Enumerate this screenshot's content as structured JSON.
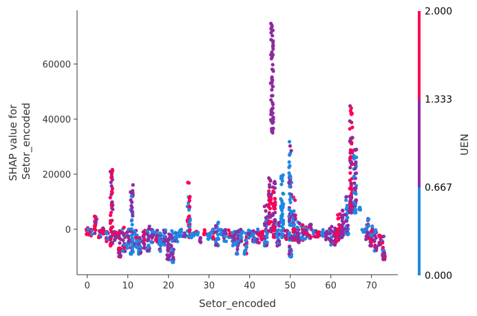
{
  "chart_data": {
    "type": "scatter",
    "title": "",
    "xlabel": "Setor_encoded",
    "ylabel_lines": [
      "SHAP value for",
      "Setor_encoded"
    ],
    "xlim": [
      -2.5,
      76.5
    ],
    "ylim": [
      -16500,
      79500
    ],
    "xticks": [
      0,
      10,
      20,
      30,
      40,
      50,
      60,
      70
    ],
    "yticks": [
      0,
      20000,
      40000,
      60000
    ],
    "x_tick_labels": [
      "0",
      "10",
      "20",
      "30",
      "40",
      "50",
      "60",
      "70"
    ],
    "y_tick_labels": [
      "0",
      "20000",
      "40000",
      "60000"
    ],
    "grid": false,
    "colorbar": {
      "label": "UEN",
      "min": 0.0,
      "max": 2.0,
      "ticks": [
        0.0,
        0.667,
        1.333,
        2.0
      ],
      "tick_labels": [
        "0.000",
        "0.667",
        "1.333",
        "2.000"
      ],
      "colors": [
        "#1e88e5",
        "#8e2ba0",
        "#ff0052"
      ]
    },
    "groups": [
      {
        "x": 0,
        "y_range": [
          -2500,
          500
        ],
        "uen": [
          0,
          2
        ]
      },
      {
        "x": 1,
        "y_range": [
          -3000,
          0
        ],
        "uen": [
          0,
          1,
          2
        ]
      },
      {
        "x": 2,
        "y_range": [
          -1500,
          5000
        ],
        "uen": [
          1,
          2
        ]
      },
      {
        "x": 3,
        "y_range": [
          -3000,
          0
        ],
        "uen": [
          0,
          2
        ]
      },
      {
        "x": 4,
        "y_range": [
          -2000,
          1000
        ],
        "uen": [
          1,
          2
        ]
      },
      {
        "x": 5,
        "y_range": [
          -5000,
          0
        ],
        "uen": [
          0,
          1,
          2
        ]
      },
      {
        "x": 6,
        "y_range": [
          -6000,
          22000
        ],
        "uen": [
          1,
          2
        ]
      },
      {
        "x": 7,
        "y_range": [
          -4000,
          0
        ],
        "uen": [
          1,
          2
        ]
      },
      {
        "x": 8,
        "y_range": [
          -10000,
          0
        ],
        "uen": [
          1,
          2
        ]
      },
      {
        "x": 9,
        "y_range": [
          -8000,
          1000
        ],
        "uen": [
          0,
          1,
          2
        ]
      },
      {
        "x": 10,
        "y_range": [
          -7000,
          0
        ],
        "uen": [
          0,
          1,
          2
        ]
      },
      {
        "x": 11,
        "y_range": [
          -9000,
          16500
        ],
        "uen": [
          0,
          1
        ]
      },
      {
        "x": 12,
        "y_range": [
          -7000,
          0
        ],
        "uen": [
          0,
          1,
          2
        ]
      },
      {
        "x": 13,
        "y_range": [
          -9000,
          -2000
        ],
        "uen": [
          0,
          1
        ]
      },
      {
        "x": 14,
        "y_range": [
          -7000,
          0
        ],
        "uen": [
          1,
          2
        ]
      },
      {
        "x": 15,
        "y_range": [
          -8000,
          1500
        ],
        "uen": [
          0,
          1
        ]
      },
      {
        "x": 16,
        "y_range": [
          -5000,
          0
        ],
        "uen": [
          0,
          1
        ]
      },
      {
        "x": 17,
        "y_range": [
          -5000,
          0
        ],
        "uen": [
          0,
          1,
          2
        ]
      },
      {
        "x": 18,
        "y_range": [
          -8000,
          -1000
        ],
        "uen": [
          0,
          1
        ]
      },
      {
        "x": 19,
        "y_range": [
          -6000,
          0
        ],
        "uen": [
          0,
          1
        ]
      },
      {
        "x": 20,
        "y_range": [
          -11000,
          -1000
        ],
        "uen": [
          1
        ]
      },
      {
        "x": 21,
        "y_range": [
          -12000,
          0
        ],
        "uen": [
          0,
          1
        ]
      },
      {
        "x": 22,
        "y_range": [
          -5000,
          -1000
        ],
        "uen": [
          0,
          1
        ]
      },
      {
        "x": 23,
        "y_range": [
          -3000,
          0
        ],
        "uen": [
          0
        ]
      },
      {
        "x": 24,
        "y_range": [
          -3000,
          -500
        ],
        "uen": [
          0,
          1
        ]
      },
      {
        "x": 25,
        "y_range": [
          -3000,
          17000
        ],
        "uen": [
          0,
          2
        ]
      },
      {
        "x": 26,
        "y_range": [
          -3000,
          -1000
        ],
        "uen": [
          0
        ]
      },
      {
        "x": 27,
        "y_range": [
          -2000,
          -500
        ],
        "uen": [
          0,
          2
        ]
      },
      {
        "x": 28,
        "y_range": [
          -5000,
          -3000
        ],
        "uen": [
          1
        ]
      },
      {
        "x": 29,
        "y_range": [
          -2000,
          0
        ],
        "uen": [
          2
        ]
      },
      {
        "x": 30,
        "y_range": [
          -4000,
          -1000
        ],
        "uen": [
          0
        ]
      },
      {
        "x": 31,
        "y_range": [
          -4000,
          0
        ],
        "uen": [
          0,
          2
        ]
      },
      {
        "x": 32,
        "y_range": [
          -6000,
          3000
        ],
        "uen": [
          0,
          1
        ]
      },
      {
        "x": 33,
        "y_range": [
          -3000,
          0
        ],
        "uen": [
          0
        ]
      },
      {
        "x": 34,
        "y_range": [
          -5000,
          0
        ],
        "uen": [
          0,
          1
        ]
      },
      {
        "x": 35,
        "y_range": [
          -3000,
          0
        ],
        "uen": [
          0,
          2
        ]
      },
      {
        "x": 36,
        "y_range": [
          -6000,
          -500
        ],
        "uen": [
          0,
          1
        ]
      },
      {
        "x": 37,
        "y_range": [
          -9000,
          1000
        ],
        "uen": [
          0,
          1
        ]
      },
      {
        "x": 38,
        "y_range": [
          -5000,
          0
        ],
        "uen": [
          0,
          1
        ]
      },
      {
        "x": 39,
        "y_range": [
          -9000,
          0
        ],
        "uen": [
          0,
          2
        ]
      },
      {
        "x": 40,
        "y_range": [
          -4000,
          0
        ],
        "uen": [
          0,
          1
        ]
      },
      {
        "x": 41,
        "y_range": [
          -5000,
          0
        ],
        "uen": [
          0,
          1
        ]
      },
      {
        "x": 42,
        "y_range": [
          -5000,
          0
        ],
        "uen": [
          0,
          1,
          2
        ]
      },
      {
        "x": 43,
        "y_range": [
          -4000,
          0
        ],
        "uen": [
          0,
          2
        ]
      },
      {
        "x": 44,
        "y_range": [
          -6000,
          10000
        ],
        "uen": [
          0,
          1
        ]
      },
      {
        "x": 45,
        "y_range": [
          -1000,
          19000
        ],
        "uen": [
          1,
          2
        ]
      },
      {
        "x": 45.5,
        "y_range": [
          35000,
          75000
        ],
        "uen": [
          1
        ]
      },
      {
        "x": 46,
        "y_range": [
          -3000,
          18000
        ],
        "uen": [
          1,
          2
        ]
      },
      {
        "x": 47,
        "y_range": [
          -6000,
          3000
        ],
        "uen": [
          0,
          1
        ]
      },
      {
        "x": 48,
        "y_range": [
          -3000,
          20000
        ],
        "uen": [
          0
        ]
      },
      {
        "x": 49,
        "y_range": [
          -4000,
          0
        ],
        "uen": [
          1,
          2
        ]
      },
      {
        "x": 50,
        "y_range": [
          -10000,
          32000
        ],
        "uen": [
          0,
          1
        ]
      },
      {
        "x": 51,
        "y_range": [
          -4000,
          14000
        ],
        "uen": [
          0,
          1,
          2
        ]
      },
      {
        "x": 52,
        "y_range": [
          -5000,
          3000
        ],
        "uen": [
          0,
          1
        ]
      },
      {
        "x": 53,
        "y_range": [
          -4000,
          2000
        ],
        "uen": [
          0,
          1,
          2
        ]
      },
      {
        "x": 54,
        "y_range": [
          -4000,
          1000
        ],
        "uen": [
          0,
          1,
          2
        ]
      },
      {
        "x": 55,
        "y_range": [
          -4000,
          2000
        ],
        "uen": [
          0,
          1,
          2
        ]
      },
      {
        "x": 56,
        "y_range": [
          -3000,
          0
        ],
        "uen": [
          0,
          1,
          2
        ]
      },
      {
        "x": 57,
        "y_range": [
          -3000,
          -1000
        ],
        "uen": [
          2
        ]
      },
      {
        "x": 58,
        "y_range": [
          -3000,
          0
        ],
        "uen": [
          0
        ]
      },
      {
        "x": 59,
        "y_range": [
          -4000,
          -500
        ],
        "uen": [
          1
        ]
      },
      {
        "x": 60,
        "y_range": [
          -6000,
          1000
        ],
        "uen": [
          0,
          1
        ]
      },
      {
        "x": 61,
        "y_range": [
          -6000,
          500
        ],
        "uen": [
          1,
          2
        ]
      },
      {
        "x": 62,
        "y_range": [
          -4000,
          6000
        ],
        "uen": [
          1,
          2
        ]
      },
      {
        "x": 63,
        "y_range": [
          -3000,
          8000
        ],
        "uen": [
          1
        ]
      },
      {
        "x": 64,
        "y_range": [
          -2000,
          13000
        ],
        "uen": [
          0,
          1
        ]
      },
      {
        "x": 65,
        "y_range": [
          6000,
          45000
        ],
        "uen": [
          1,
          2
        ]
      },
      {
        "x": 66,
        "y_range": [
          6000,
          29000
        ],
        "uen": [
          0,
          1
        ]
      },
      {
        "x": 67,
        "y_range": [
          7000,
          8000
        ],
        "uen": [
          0
        ]
      },
      {
        "x": 68,
        "y_range": [
          -1000,
          0
        ],
        "uen": [
          0
        ]
      },
      {
        "x": 69,
        "y_range": [
          -4000,
          4000
        ],
        "uen": [
          0,
          1,
          2
        ]
      },
      {
        "x": 70,
        "y_range": [
          -6000,
          3000
        ],
        "uen": [
          0,
          1,
          2
        ]
      },
      {
        "x": 71,
        "y_range": [
          -8000,
          0
        ],
        "uen": [
          0,
          1,
          2
        ]
      },
      {
        "x": 72,
        "y_range": [
          -6000,
          -2000
        ],
        "uen": [
          1,
          2
        ]
      },
      {
        "x": 73,
        "y_range": [
          -11000,
          -2000
        ],
        "uen": [
          0,
          1,
          2
        ]
      }
    ]
  }
}
